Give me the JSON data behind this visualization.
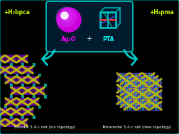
{
  "bg_color": "#000000",
  "border_color": "#00cccc",
  "left_label": "+H₂bpca",
  "right_label": "+H₄pma",
  "center_box_bg": "#001a2e",
  "center_box_border": "#00aaaa",
  "ag2o_label": "Ag₂O",
  "pta_label": "PTA",
  "plus_label": "+",
  "bottom_left_label": "Binodal 3,4-c net (ins topology)",
  "bottom_right_label": "Tetranodal 3,4-c net (new topology)",
  "label_color": "#ffffff",
  "left_text_color": "#ccff00",
  "right_text_color": "#ccff00",
  "ag2o_color": "#cc00dd",
  "pta_formula_color": "#00ffff",
  "ag2o_formula_color": "#ff00ff",
  "arrow_color": "#00cccc",
  "net_purple": "#8800cc",
  "net_yellow": "#bbbb00",
  "net_cyan": "#00bbaa",
  "net_green": "#00cc88"
}
